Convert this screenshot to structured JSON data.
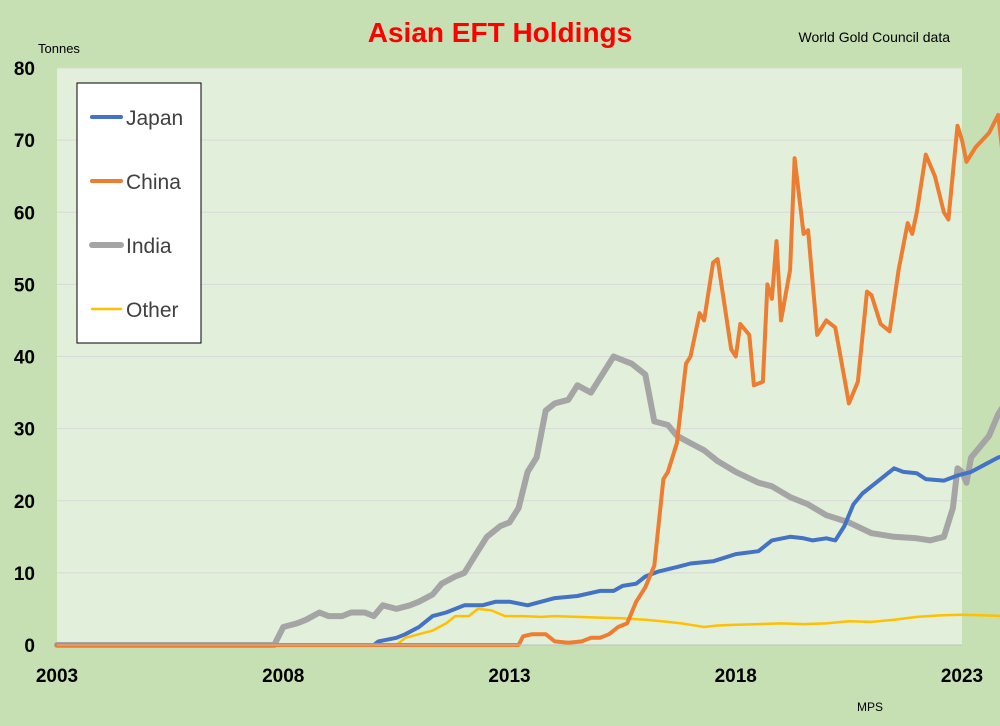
{
  "chart_data": {
    "type": "line",
    "title": "Asian EFT Holdings",
    "source_note": "World Gold Council data",
    "ylabel": "Tonnes",
    "credit": "MPS",
    "xlim": [
      2003,
      2023
    ],
    "ylim": [
      0,
      80
    ],
    "x_ticks": [
      "2003",
      "2008",
      "2013",
      "2018",
      "2023"
    ],
    "y_ticks": [
      "0",
      "10",
      "20",
      "30",
      "40",
      "50",
      "60",
      "70",
      "80"
    ],
    "grid": true,
    "legend_position": "top-left",
    "series": [
      {
        "name": "Japan",
        "color": "#4472c4",
        "points": [
          [
            2003,
            0
          ],
          [
            2010.0,
            0
          ],
          [
            2010.1,
            0.5
          ],
          [
            2010.5,
            1
          ],
          [
            2010.7,
            1.5
          ],
          [
            2011.0,
            2.5
          ],
          [
            2011.3,
            4
          ],
          [
            2011.6,
            4.5
          ],
          [
            2012.0,
            5.5
          ],
          [
            2012.4,
            5.5
          ],
          [
            2012.7,
            6
          ],
          [
            2013.0,
            6
          ],
          [
            2013.4,
            5.5
          ],
          [
            2013.7,
            6
          ],
          [
            2014.0,
            6.5
          ],
          [
            2014.5,
            6.8
          ],
          [
            2015.0,
            7.5
          ],
          [
            2015.3,
            7.5
          ],
          [
            2015.5,
            8.2
          ],
          [
            2015.8,
            8.5
          ],
          [
            2016.0,
            9.5
          ],
          [
            2016.3,
            10.2
          ],
          [
            2016.7,
            10.8
          ],
          [
            2017.0,
            11.3
          ],
          [
            2017.5,
            11.6
          ],
          [
            2018.0,
            12.6
          ],
          [
            2018.5,
            13
          ],
          [
            2018.8,
            14.5
          ],
          [
            2019.2,
            15
          ],
          [
            2019.5,
            14.8
          ],
          [
            2019.7,
            14.5
          ],
          [
            2020.0,
            14.8
          ],
          [
            2020.2,
            14.5
          ],
          [
            2020.4,
            16.5
          ],
          [
            2020.6,
            19.5
          ],
          [
            2020.8,
            21
          ],
          [
            2021.2,
            23
          ],
          [
            2021.5,
            24.5
          ],
          [
            2021.7,
            24
          ],
          [
            2022.0,
            23.8
          ],
          [
            2022.2,
            23
          ],
          [
            2022.6,
            22.8
          ],
          [
            2022.9,
            23.5
          ],
          [
            2023.2,
            24
          ],
          [
            2023.5,
            25
          ],
          [
            2023.8,
            26
          ],
          [
            2024.0,
            26.3
          ]
        ]
      },
      {
        "name": "China",
        "color": "#ed7d31",
        "points": [
          [
            2003,
            0
          ],
          [
            2013.2,
            0
          ],
          [
            2013.3,
            1.2
          ],
          [
            2013.5,
            1.5
          ],
          [
            2013.8,
            1.5
          ],
          [
            2014.0,
            0.5
          ],
          [
            2014.3,
            0.3
          ],
          [
            2014.6,
            0.5
          ],
          [
            2014.8,
            1
          ],
          [
            2015.0,
            1
          ],
          [
            2015.2,
            1.5
          ],
          [
            2015.4,
            2.5
          ],
          [
            2015.6,
            3
          ],
          [
            2015.8,
            6
          ],
          [
            2016.0,
            8
          ],
          [
            2016.2,
            11
          ],
          [
            2016.4,
            23
          ],
          [
            2016.5,
            24
          ],
          [
            2016.7,
            28
          ],
          [
            2016.9,
            39
          ],
          [
            2017.0,
            40
          ],
          [
            2017.2,
            46
          ],
          [
            2017.3,
            45
          ],
          [
            2017.5,
            53
          ],
          [
            2017.6,
            53.5
          ],
          [
            2017.9,
            41
          ],
          [
            2018.0,
            40
          ],
          [
            2018.1,
            44.5
          ],
          [
            2018.3,
            43
          ],
          [
            2018.4,
            36
          ],
          [
            2018.6,
            36.5
          ],
          [
            2018.7,
            50
          ],
          [
            2018.8,
            48
          ],
          [
            2018.9,
            56
          ],
          [
            2019.0,
            45
          ],
          [
            2019.2,
            52
          ],
          [
            2019.3,
            67.5
          ],
          [
            2019.5,
            57
          ],
          [
            2019.6,
            57.5
          ],
          [
            2019.8,
            43
          ],
          [
            2020.0,
            45
          ],
          [
            2020.2,
            44
          ],
          [
            2020.4,
            37
          ],
          [
            2020.5,
            33.5
          ],
          [
            2020.7,
            36.5
          ],
          [
            2020.9,
            49
          ],
          [
            2021.0,
            48.5
          ],
          [
            2021.2,
            44.5
          ],
          [
            2021.4,
            43.5
          ],
          [
            2021.6,
            52
          ],
          [
            2021.8,
            58.5
          ],
          [
            2021.9,
            57
          ],
          [
            2022.0,
            60
          ],
          [
            2022.2,
            68
          ],
          [
            2022.4,
            65
          ],
          [
            2022.6,
            60
          ],
          [
            2022.7,
            59
          ],
          [
            2022.9,
            72
          ],
          [
            2023.0,
            70
          ],
          [
            2023.1,
            67
          ],
          [
            2023.3,
            69
          ],
          [
            2023.6,
            71
          ],
          [
            2023.8,
            73.5
          ],
          [
            2023.9,
            68
          ],
          [
            2024.0,
            75
          ]
        ]
      },
      {
        "name": "India",
        "color": "#a5a5a5",
        "points": [
          [
            2003,
            0
          ],
          [
            2007.8,
            0
          ],
          [
            2008.0,
            2.5
          ],
          [
            2008.3,
            3
          ],
          [
            2008.5,
            3.5
          ],
          [
            2008.8,
            4.5
          ],
          [
            2009.0,
            4
          ],
          [
            2009.3,
            4
          ],
          [
            2009.5,
            4.5
          ],
          [
            2009.8,
            4.5
          ],
          [
            2010.0,
            4
          ],
          [
            2010.2,
            5.5
          ],
          [
            2010.5,
            5
          ],
          [
            2010.8,
            5.5
          ],
          [
            2011.0,
            6
          ],
          [
            2011.3,
            7
          ],
          [
            2011.5,
            8.5
          ],
          [
            2011.8,
            9.5
          ],
          [
            2012.0,
            10
          ],
          [
            2012.3,
            13
          ],
          [
            2012.5,
            15
          ],
          [
            2012.8,
            16.5
          ],
          [
            2013.0,
            17
          ],
          [
            2013.2,
            19
          ],
          [
            2013.4,
            24
          ],
          [
            2013.6,
            26
          ],
          [
            2013.8,
            32.5
          ],
          [
            2014.0,
            33.5
          ],
          [
            2014.3,
            34
          ],
          [
            2014.5,
            36
          ],
          [
            2014.8,
            35
          ],
          [
            2015.0,
            37
          ],
          [
            2015.3,
            40
          ],
          [
            2015.5,
            39.5
          ],
          [
            2015.7,
            39
          ],
          [
            2016.0,
            37.5
          ],
          [
            2016.2,
            31
          ],
          [
            2016.5,
            30.5
          ],
          [
            2016.7,
            29
          ],
          [
            2017.0,
            28
          ],
          [
            2017.3,
            27
          ],
          [
            2017.6,
            25.5
          ],
          [
            2018.0,
            24
          ],
          [
            2018.5,
            22.5
          ],
          [
            2018.8,
            22
          ],
          [
            2019.2,
            20.5
          ],
          [
            2019.6,
            19.5
          ],
          [
            2020.0,
            18
          ],
          [
            2020.5,
            17
          ],
          [
            2021.0,
            15.5
          ],
          [
            2021.5,
            15
          ],
          [
            2022.0,
            14.8
          ],
          [
            2022.3,
            14.5
          ],
          [
            2022.6,
            15
          ],
          [
            2022.8,
            19
          ],
          [
            2022.9,
            24.5
          ],
          [
            2023.0,
            24
          ],
          [
            2023.1,
            22.5
          ],
          [
            2023.2,
            26
          ],
          [
            2023.4,
            27.5
          ],
          [
            2023.6,
            29
          ],
          [
            2023.8,
            32
          ],
          [
            2024.0,
            34
          ]
        ]
      },
      {
        "name": "Other",
        "color": "#ffc000",
        "points": [
          [
            2003,
            0
          ],
          [
            2010.5,
            0
          ],
          [
            2010.7,
            1
          ],
          [
            2011.0,
            1.5
          ],
          [
            2011.3,
            2
          ],
          [
            2011.6,
            3
          ],
          [
            2011.8,
            4
          ],
          [
            2012.1,
            4
          ],
          [
            2012.3,
            5
          ],
          [
            2012.6,
            4.8
          ],
          [
            2012.9,
            4
          ],
          [
            2013.3,
            4
          ],
          [
            2013.7,
            3.9
          ],
          [
            2014.0,
            4
          ],
          [
            2014.5,
            3.9
          ],
          [
            2015.0,
            3.8
          ],
          [
            2015.5,
            3.7
          ],
          [
            2016.0,
            3.5
          ],
          [
            2016.5,
            3.2
          ],
          [
            2016.8,
            3
          ],
          [
            2017.0,
            2.8
          ],
          [
            2017.3,
            2.5
          ],
          [
            2017.6,
            2.7
          ],
          [
            2018.0,
            2.8
          ],
          [
            2018.5,
            2.9
          ],
          [
            2019.0,
            3
          ],
          [
            2019.5,
            2.9
          ],
          [
            2020.0,
            3
          ],
          [
            2020.5,
            3.3
          ],
          [
            2021.0,
            3.2
          ],
          [
            2021.5,
            3.5
          ],
          [
            2022.0,
            3.9
          ],
          [
            2022.5,
            4.1
          ],
          [
            2023.0,
            4.2
          ],
          [
            2023.5,
            4.1
          ],
          [
            2024.0,
            4
          ]
        ]
      }
    ]
  }
}
